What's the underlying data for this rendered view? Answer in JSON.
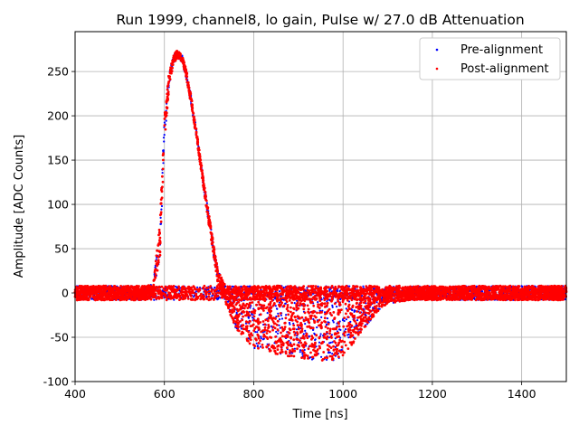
{
  "chart_data": {
    "type": "scatter",
    "title": "Run 1999, channel8, lo gain, Pulse w/ 27.0 dB Attenuation",
    "xlabel": "Time [ns]",
    "ylabel": "Amplitude [ADC Counts]",
    "xlim": [
      400,
      1500
    ],
    "ylim": [
      -100,
      295
    ],
    "xticks": [
      400,
      600,
      800,
      1000,
      1200,
      1400
    ],
    "yticks": [
      -100,
      -50,
      0,
      50,
      100,
      150,
      200,
      250
    ],
    "grid": true,
    "legend_position": "top-right",
    "series": [
      {
        "name": "Pre-alignment",
        "color": "#0000ff",
        "description": "dense band of overlapping pulses with baseline noise about ±8 ADC counts",
        "envelope": {
          "x": [
            400,
            560,
            575,
            590,
            600,
            610,
            620,
            630,
            640,
            650,
            660,
            670,
            680,
            690,
            700,
            710,
            720,
            740,
            760,
            780,
            800,
            850,
            900,
            950,
            980,
            1000,
            1020,
            1050,
            1080,
            1100,
            1150,
            1200,
            1300,
            1400,
            1500
          ],
          "upper": [
            8,
            8,
            10,
            80,
            200,
            248,
            268,
            275,
            268,
            250,
            222,
            190,
            155,
            120,
            88,
            55,
            25,
            5,
            5,
            5,
            5,
            5,
            5,
            5,
            5,
            5,
            5,
            5,
            5,
            6,
            6,
            7,
            8,
            8,
            8
          ],
          "lower": [
            -8,
            -8,
            -5,
            40,
            170,
            230,
            258,
            266,
            260,
            240,
            212,
            180,
            145,
            110,
            75,
            42,
            10,
            -15,
            -40,
            -52,
            -62,
            -70,
            -74,
            -76,
            -76,
            -72,
            -60,
            -38,
            -20,
            -12,
            -8,
            -8,
            -8,
            -8,
            -8
          ]
        }
      },
      {
        "name": "Post-alignment",
        "color": "#ff0000",
        "description": "aligned pulses overlaid on the same band; covers nearly all blue points",
        "envelope": {
          "x": [
            400,
            560,
            575,
            590,
            600,
            610,
            620,
            630,
            640,
            650,
            660,
            670,
            680,
            690,
            700,
            710,
            720,
            740,
            760,
            780,
            800,
            850,
            900,
            950,
            980,
            1000,
            1020,
            1050,
            1080,
            1100,
            1150,
            1200,
            1300,
            1400,
            1500
          ],
          "upper": [
            8,
            8,
            10,
            80,
            200,
            248,
            268,
            275,
            268,
            250,
            222,
            190,
            155,
            120,
            88,
            55,
            25,
            5,
            5,
            5,
            5,
            5,
            5,
            5,
            5,
            5,
            5,
            5,
            5,
            6,
            6,
            7,
            8,
            8,
            8
          ],
          "lower": [
            -8,
            -8,
            -5,
            40,
            170,
            230,
            258,
            266,
            260,
            240,
            212,
            180,
            145,
            110,
            75,
            42,
            10,
            -15,
            -40,
            -52,
            -62,
            -70,
            -74,
            -76,
            -76,
            -72,
            -60,
            -38,
            -20,
            -12,
            -8,
            -8,
            -8,
            -8,
            -8
          ]
        }
      }
    ]
  }
}
